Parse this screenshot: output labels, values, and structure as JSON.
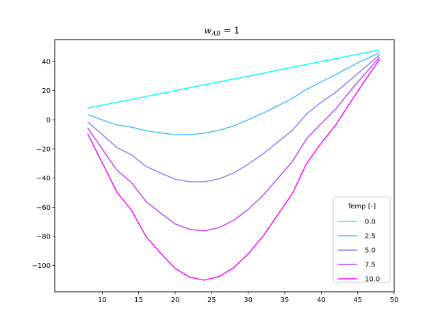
{
  "chart_data": {
    "type": "line",
    "title": {
      "main": "w",
      "subscript": "AB",
      "rest": " = 1"
    },
    "xlabel": "",
    "ylabel": "",
    "xlim": [
      3.5,
      50
    ],
    "ylim": [
      -118,
      55
    ],
    "xticks": [
      10,
      15,
      20,
      25,
      30,
      35,
      40,
      45,
      50
    ],
    "yticks": [
      -100,
      -80,
      -60,
      -40,
      -20,
      0,
      20,
      40
    ],
    "grid": false,
    "legend": {
      "title": "Temp [-]",
      "position": "lower-right"
    },
    "x": [
      8,
      10,
      12,
      14,
      16,
      18,
      20,
      22,
      24,
      26,
      28,
      30,
      32,
      34,
      36,
      38,
      40,
      42,
      44,
      46,
      48
    ],
    "series": [
      {
        "name": "0.0",
        "color": "#00ffff",
        "values": [
          8,
          10,
          12,
          14,
          16,
          18,
          20,
          22,
          24,
          26,
          28,
          30,
          32,
          34,
          36,
          38,
          40,
          42,
          44,
          46,
          48
        ]
      },
      {
        "name": "2.5",
        "color": "#40bfff",
        "values": [
          3.5,
          0,
          -3.5,
          -5,
          -7.5,
          -9,
          -10.2,
          -10.2,
          -9.2,
          -7.2,
          -4.2,
          0,
          4.5,
          9.5,
          14.5,
          21,
          26,
          31,
          36.5,
          41.5,
          46
        ]
      },
      {
        "name": "5.0",
        "color": "#8080ff",
        "values": [
          -1.5,
          -10,
          -19,
          -24,
          -32,
          -36.5,
          -40.8,
          -42.5,
          -42.5,
          -40.5,
          -36.5,
          -30.5,
          -23.5,
          -15.5,
          -7.5,
          4,
          12,
          19,
          27.5,
          36,
          44.5
        ]
      },
      {
        "name": "7.5",
        "color": "#bf40ff",
        "values": [
          -5.5,
          -20,
          -34.5,
          -43,
          -56,
          -64,
          -71.5,
          -75.2,
          -76.2,
          -74,
          -69,
          -61.5,
          -52,
          -40.5,
          -29,
          -13,
          -2.5,
          7.5,
          20,
          31.5,
          43
        ]
      },
      {
        "name": "10.0",
        "color": "#ff00ff",
        "values": [
          -9.5,
          -29.5,
          -49.5,
          -62,
          -80,
          -91.5,
          -102,
          -108,
          -110,
          -107.5,
          -101.5,
          -92,
          -80,
          -65.5,
          -51,
          -30,
          -16,
          -3.5,
          12,
          27,
          41.5
        ]
      }
    ]
  }
}
